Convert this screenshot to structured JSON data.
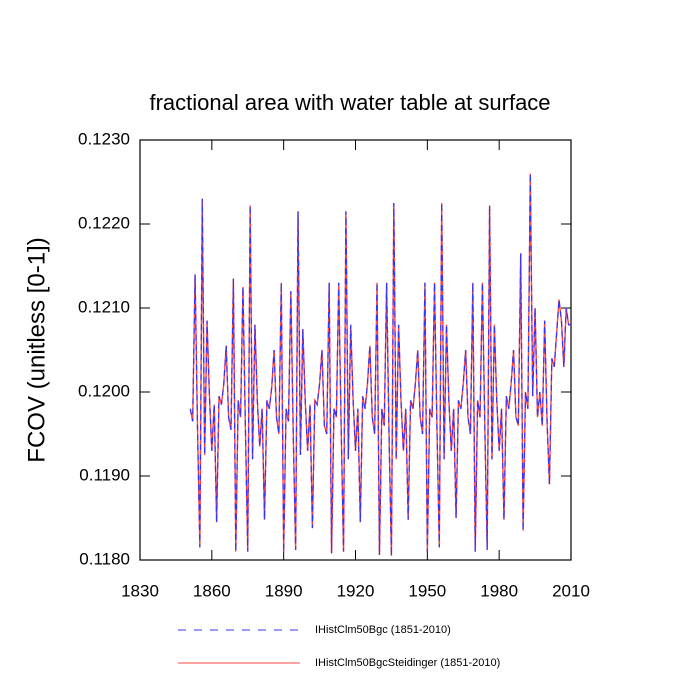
{
  "chart_data": {
    "type": "line",
    "title": "fractional area with water table at surface",
    "y_label": "FCOV  (unitless [0-1])",
    "x": [
      1851,
      1852,
      1853,
      1854,
      1855,
      1856,
      1857,
      1858,
      1859,
      1860,
      1861,
      1862,
      1863,
      1864,
      1865,
      1866,
      1867,
      1868,
      1869,
      1870,
      1871,
      1872,
      1873,
      1874,
      1875,
      1876,
      1877,
      1878,
      1879,
      1880,
      1881,
      1882,
      1883,
      1884,
      1885,
      1886,
      1887,
      1888,
      1889,
      1890,
      1891,
      1892,
      1893,
      1894,
      1895,
      1896,
      1897,
      1898,
      1899,
      1900,
      1901,
      1902,
      1903,
      1904,
      1905,
      1906,
      1907,
      1908,
      1909,
      1910,
      1911,
      1912,
      1913,
      1914,
      1915,
      1916,
      1917,
      1918,
      1919,
      1920,
      1921,
      1922,
      1923,
      1924,
      1925,
      1926,
      1927,
      1928,
      1929,
      1930,
      1931,
      1932,
      1933,
      1934,
      1935,
      1936,
      1937,
      1938,
      1939,
      1940,
      1941,
      1942,
      1943,
      1944,
      1945,
      1946,
      1947,
      1948,
      1949,
      1950,
      1951,
      1952,
      1953,
      1954,
      1955,
      1956,
      1957,
      1958,
      1959,
      1960,
      1961,
      1962,
      1963,
      1964,
      1965,
      1966,
      1967,
      1968,
      1969,
      1970,
      1971,
      1972,
      1973,
      1974,
      1975,
      1976,
      1977,
      1978,
      1979,
      1980,
      1981,
      1982,
      1983,
      1984,
      1985,
      1986,
      1987,
      1988,
      1989,
      1990,
      1991,
      1992,
      1993,
      1994,
      1995,
      1996,
      1997,
      1998,
      1999,
      2000,
      2001,
      2002,
      2003,
      2004,
      2005,
      2006,
      2007,
      2008,
      2009,
      2010
    ],
    "series": [
      {
        "name": "IHistClm50Bgc (1851-2010)",
        "color": "#3333ff",
        "dash": true,
        "values": [
          0.1198,
          0.11965,
          0.1214,
          0.1196,
          0.11815,
          0.1223,
          0.11925,
          0.12085,
          0.11995,
          0.1193,
          0.11985,
          0.11845,
          0.11995,
          0.11985,
          0.1201,
          0.12055,
          0.1197,
          0.11955,
          0.12135,
          0.1181,
          0.1199,
          0.1197,
          0.12125,
          0.1196,
          0.1181,
          0.12222,
          0.1192,
          0.1208,
          0.1199,
          0.11935,
          0.1198,
          0.11848,
          0.1199,
          0.1198,
          0.12005,
          0.1205,
          0.1197,
          0.1195,
          0.1213,
          0.1181,
          0.1198,
          0.11965,
          0.1212,
          0.1195,
          0.11812,
          0.12215,
          0.11925,
          0.12075,
          0.1199,
          0.1193,
          0.11985,
          0.11838,
          0.1199,
          0.11985,
          0.1201,
          0.1205,
          0.1196,
          0.1195,
          0.1213,
          0.11808,
          0.1198,
          0.1197,
          0.1213,
          0.1196,
          0.1181,
          0.12215,
          0.1192,
          0.1208,
          0.1199,
          0.1193,
          0.1198,
          0.11845,
          0.11995,
          0.1198,
          0.1201,
          0.12055,
          0.1197,
          0.1195,
          0.1213,
          0.11806,
          0.1198,
          0.1196,
          0.1213,
          0.1195,
          0.11805,
          0.12225,
          0.1192,
          0.1208,
          0.1199,
          0.1193,
          0.1198,
          0.11848,
          0.1199,
          0.1198,
          0.1201,
          0.1205,
          0.1197,
          0.1195,
          0.1213,
          0.1181,
          0.1198,
          0.1197,
          0.1213,
          0.1196,
          0.11815,
          0.12225,
          0.1192,
          0.1208,
          0.1199,
          0.1193,
          0.1198,
          0.1185,
          0.1199,
          0.1198,
          0.1201,
          0.1205,
          0.1197,
          0.1195,
          0.1213,
          0.1181,
          0.1199,
          0.1197,
          0.1213,
          0.1196,
          0.11812,
          0.12222,
          0.1192,
          0.1208,
          0.1199,
          0.1193,
          0.1198,
          0.11848,
          0.11995,
          0.1198,
          0.1201,
          0.1205,
          0.1197,
          0.1196,
          0.12165,
          0.11835,
          0.12,
          0.1198,
          0.1226,
          0.11995,
          0.121,
          0.1197,
          0.12,
          0.1196,
          0.12085,
          0.11965,
          0.1189,
          0.1204,
          0.1203,
          0.1207,
          0.1211,
          0.12085,
          0.1203,
          0.121,
          0.1208,
          0.1208
        ]
      },
      {
        "name": "IHistClm50BgcSteidinger (1851-2010)",
        "color": "#ff4444",
        "dash": false,
        "values": [
          0.1198,
          0.11965,
          0.1214,
          0.1196,
          0.11815,
          0.1223,
          0.11925,
          0.12085,
          0.11995,
          0.1193,
          0.11985,
          0.11845,
          0.11995,
          0.11985,
          0.1201,
          0.12055,
          0.1197,
          0.11955,
          0.12135,
          0.1181,
          0.1199,
          0.1197,
          0.12125,
          0.1196,
          0.1181,
          0.12222,
          0.1192,
          0.1208,
          0.1199,
          0.11935,
          0.1198,
          0.11848,
          0.1199,
          0.1198,
          0.12005,
          0.1205,
          0.1197,
          0.1195,
          0.1213,
          0.1181,
          0.1198,
          0.11965,
          0.1212,
          0.1195,
          0.11812,
          0.12215,
          0.11925,
          0.12075,
          0.1199,
          0.1193,
          0.11985,
          0.11838,
          0.1199,
          0.11985,
          0.1201,
          0.1205,
          0.1196,
          0.1195,
          0.1213,
          0.11808,
          0.1198,
          0.1197,
          0.1213,
          0.1196,
          0.1181,
          0.12215,
          0.1192,
          0.1208,
          0.1199,
          0.1193,
          0.1198,
          0.11845,
          0.11995,
          0.1198,
          0.1201,
          0.12055,
          0.1197,
          0.1195,
          0.1213,
          0.11806,
          0.1198,
          0.1196,
          0.1213,
          0.1195,
          0.11805,
          0.12225,
          0.1192,
          0.1208,
          0.1199,
          0.1193,
          0.1198,
          0.11848,
          0.1199,
          0.1198,
          0.1201,
          0.1205,
          0.1197,
          0.1195,
          0.1213,
          0.1181,
          0.1198,
          0.1197,
          0.1213,
          0.1196,
          0.11815,
          0.12225,
          0.1192,
          0.1208,
          0.1199,
          0.1193,
          0.1198,
          0.1185,
          0.1199,
          0.1198,
          0.1201,
          0.1205,
          0.1197,
          0.1195,
          0.1213,
          0.1181,
          0.1199,
          0.1197,
          0.1213,
          0.1196,
          0.11812,
          0.12222,
          0.1192,
          0.1208,
          0.1199,
          0.1193,
          0.1198,
          0.11848,
          0.11995,
          0.1198,
          0.1201,
          0.1205,
          0.1197,
          0.1196,
          0.12165,
          0.11835,
          0.12,
          0.1198,
          0.1226,
          0.11995,
          0.121,
          0.1197,
          0.12,
          0.1196,
          0.12085,
          0.11965,
          0.1189,
          0.1204,
          0.1203,
          0.1207,
          0.1211,
          0.12085,
          0.1203,
          0.121,
          0.1208,
          0.1208
        ]
      }
    ],
    "xlim": [
      1830,
      2010
    ],
    "xticks": [
      1830,
      1860,
      1890,
      1920,
      1950,
      1980,
      2010
    ],
    "ylim": [
      0.118,
      0.123
    ],
    "yticks": [
      {
        "value": 0.118,
        "label": "0.1180"
      },
      {
        "value": 0.119,
        "label": "0.1190"
      },
      {
        "value": 0.12,
        "label": "0.1200"
      },
      {
        "value": 0.121,
        "label": "0.1210"
      },
      {
        "value": 0.122,
        "label": "0.1220"
      },
      {
        "value": 0.123,
        "label": "0.1230"
      }
    ]
  }
}
